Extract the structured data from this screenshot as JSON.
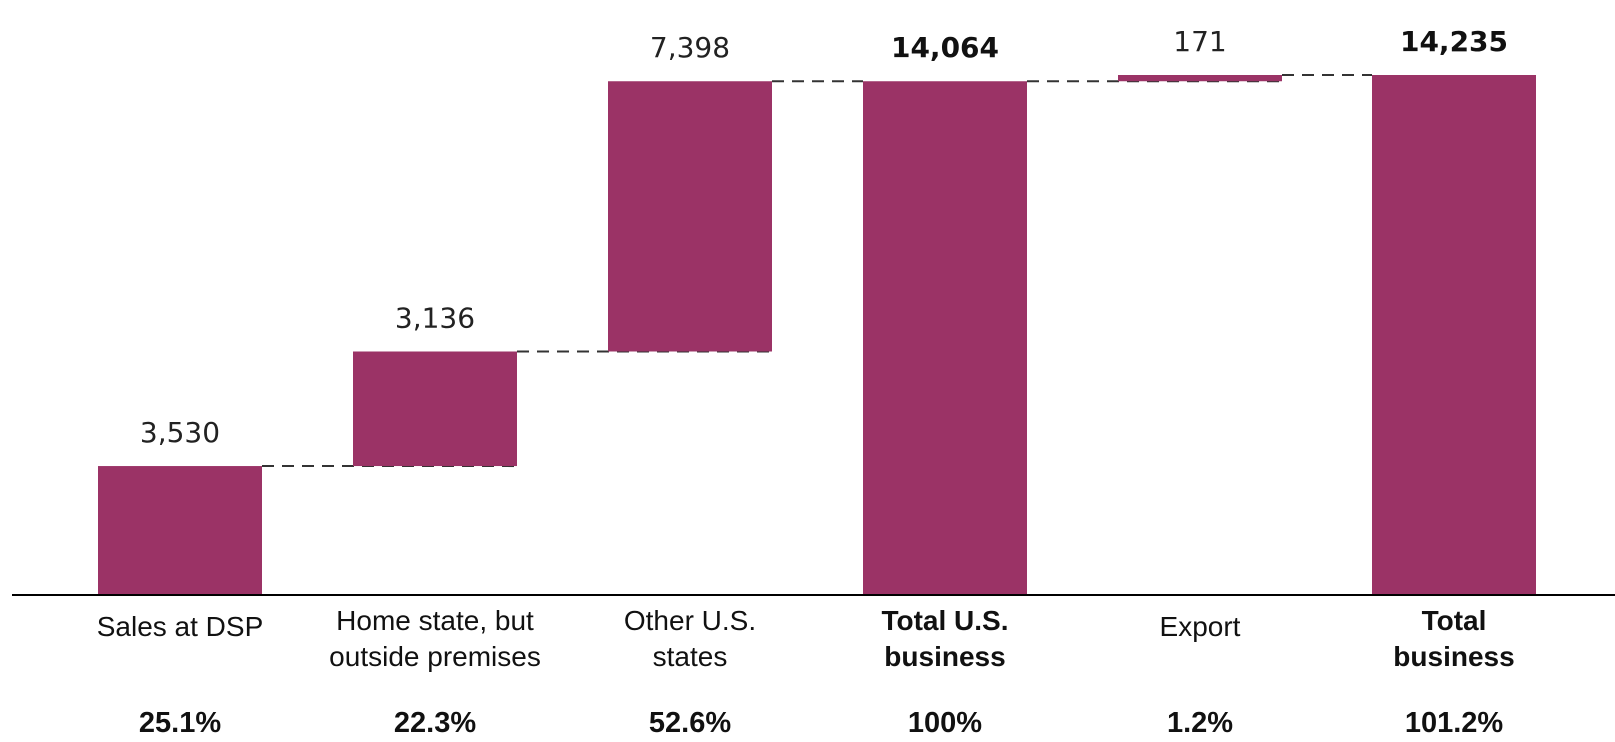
{
  "chart_data": {
    "type": "bar",
    "subtype": "waterfall",
    "bar_color": "#9b3366",
    "connector_style": "dashed",
    "grid": false,
    "categories": [
      [
        "Sales at DSP"
      ],
      [
        "Home state, but",
        "outside premises"
      ],
      [
        "Other U.S.",
        "states"
      ],
      [
        "Total U.S.",
        "business"
      ],
      [
        "Export"
      ],
      [
        "Total",
        "business"
      ]
    ],
    "values": [
      3530,
      3136,
      7398,
      14064,
      171,
      14235
    ],
    "value_labels": [
      "3,530",
      "3,136",
      "7,398",
      "14,064",
      "171",
      "14,235"
    ],
    "bar_kind": [
      "delta",
      "delta",
      "delta",
      "total",
      "delta",
      "total"
    ],
    "percentages": [
      "25.1%",
      "22.3%",
      "52.6%",
      "100%",
      "1.2%",
      "101.2%"
    ],
    "ylim": [
      0,
      14235
    ]
  }
}
